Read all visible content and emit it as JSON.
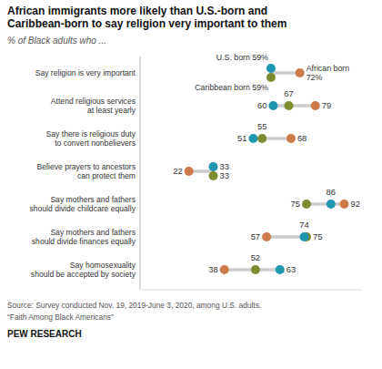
{
  "chart_data": {
    "type": "dot",
    "title": "African immigrants more likely than U.S.-born and\nCaribbean-born to say religion very important to them",
    "subtitle": "% of Black adults who ...",
    "categories": [
      "Say religion is very important",
      "Attend religious services\nat least yearly",
      "Say there is religious duty\nto convert nonbelievers",
      "Believe prayers to ancestors\ncan protect them",
      "Say mothers and fathers\nshould divide childcare equally",
      "Say mothers and fathers\nshould divide finances equally",
      "Say homosexuality\nshould be accepted by society"
    ],
    "series": [
      {
        "color": "#2196b0",
        "values": [
          59,
          60,
          51,
          33,
          86,
          74,
          63
        ],
        "value_labels": [
          "U.S. born 59%",
          "60",
          "51",
          "33",
          "86",
          "74",
          "63"
        ]
      },
      {
        "color": "#7d8c2e",
        "values": [
          59,
          67,
          55,
          33,
          75,
          75,
          52
        ],
        "value_labels": [
          "Caribbean born 59%",
          "67",
          "55",
          "33",
          "75",
          "75",
          "52"
        ]
      },
      {
        "color": "#cc7a4a",
        "values": [
          72,
          79,
          68,
          22,
          92,
          57,
          38
        ],
        "value_labels": [
          "African born\n72%",
          "79",
          "68",
          "22",
          "92",
          "57",
          "38"
        ]
      }
    ],
    "xlim": [
      0,
      100
    ],
    "tick_labels": false,
    "grid": false,
    "data_labels": true,
    "annotations": [
      "Source: Survey conducted Nov. 19, 2019-June 3, 2020, among U.S. adults.",
      "“Faith Among Black Americans”",
      "PEW RESEARCH"
    ]
  }
}
